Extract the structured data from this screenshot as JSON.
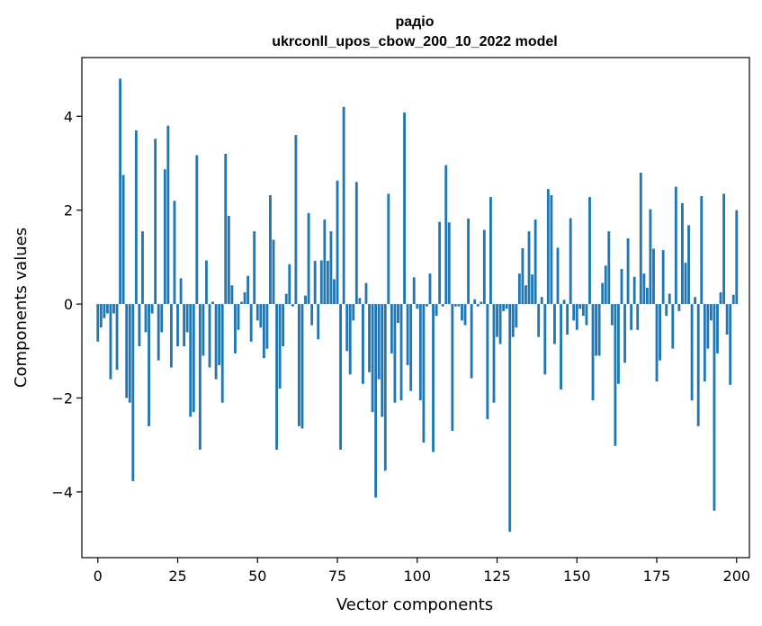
{
  "chart_data": {
    "type": "bar",
    "title_line1": "радіо",
    "title_line2": "ukrconll_upos_cbow_200_10_2022 model",
    "xlabel": "Vector components",
    "ylabel": "Components values",
    "xlim": [
      -5,
      204
    ],
    "ylim": [
      -5.4,
      5.25
    ],
    "x_ticks": [
      0,
      25,
      50,
      75,
      100,
      125,
      150,
      175,
      200
    ],
    "x_tick_labels": [
      "0",
      "25",
      "50",
      "75",
      "100",
      "125",
      "150",
      "175",
      "200"
    ],
    "y_ticks": [
      -4,
      -2,
      0,
      2,
      4
    ],
    "y_tick_labels": [
      "−4",
      "−2",
      "0",
      "2",
      "4"
    ],
    "bar_color": "#1f77b4",
    "grid": false,
    "values": [
      -0.8,
      -0.5,
      -0.3,
      -0.2,
      -1.6,
      -0.2,
      -1.4,
      4.8,
      2.75,
      -2.0,
      -2.1,
      -3.77,
      3.7,
      -0.9,
      1.55,
      -0.6,
      -2.6,
      -0.2,
      3.52,
      -1.2,
      -0.6,
      2.87,
      3.8,
      -1.35,
      2.2,
      -0.9,
      0.55,
      -0.9,
      -0.6,
      -2.4,
      -2.3,
      3.17,
      -3.1,
      -1.1,
      0.93,
      -1.35,
      0.05,
      -1.6,
      -1.3,
      -2.1,
      3.2,
      1.88,
      0.4,
      -1.05,
      -0.55,
      0.05,
      0.25,
      0.6,
      -0.8,
      1.55,
      -0.35,
      -0.5,
      -1.15,
      -0.95,
      2.32,
      1.37,
      -3.1,
      -1.8,
      -0.9,
      0.22,
      0.85,
      -0.05,
      3.6,
      -2.6,
      -2.65,
      0.18,
      1.94,
      -0.45,
      0.92,
      -0.75,
      0.93,
      1.8,
      0.92,
      1.55,
      0.53,
      2.63,
      -3.1,
      4.2,
      -1.0,
      -1.5,
      -0.35,
      2.6,
      0.13,
      -1.7,
      0.45,
      -1.45,
      -2.3,
      -4.12,
      -1.6,
      -2.4,
      -3.55,
      2.35,
      -1.05,
      -2.1,
      -0.4,
      -2.05,
      4.08,
      -1.3,
      -1.85,
      0.57,
      -0.1,
      -2.05,
      -2.95,
      -0.05,
      0.65,
      -3.15,
      -0.25,
      1.75,
      -0.05,
      2.96,
      1.74,
      -2.7,
      -0.05,
      -0.05,
      -0.35,
      -0.45,
      1.82,
      -1.58,
      0.1,
      -0.05,
      0.05,
      1.58,
      -2.45,
      2.28,
      -2.1,
      -0.7,
      -0.85,
      -0.15,
      -0.1,
      -4.85,
      -0.7,
      -0.5,
      0.65,
      1.19,
      0.4,
      1.55,
      0.63,
      1.8,
      -0.7,
      0.15,
      -1.5,
      2.45,
      2.32,
      -0.85,
      1.2,
      -1.82,
      0.09,
      -0.65,
      1.83,
      -0.35,
      -0.55,
      -0.1,
      -0.25,
      -0.45,
      2.28,
      -2.05,
      -1.1,
      -1.1,
      0.45,
      0.82,
      1.55,
      -0.45,
      -3.02,
      -1.7,
      0.75,
      -1.25,
      1.4,
      -0.55,
      0.58,
      -0.55,
      2.8,
      0.65,
      0.35,
      2.02,
      1.18,
      -1.65,
      -1.2,
      1.15,
      -0.25,
      0.22,
      -0.95,
      2.5,
      -0.15,
      2.15,
      0.88,
      1.68,
      -2.05,
      0.15,
      -2.6,
      2.3,
      -1.65,
      -0.95,
      -0.35,
      -4.4,
      -1.05,
      0.25,
      2.35,
      -0.65,
      -1.72,
      0.2,
      2.0
    ]
  }
}
